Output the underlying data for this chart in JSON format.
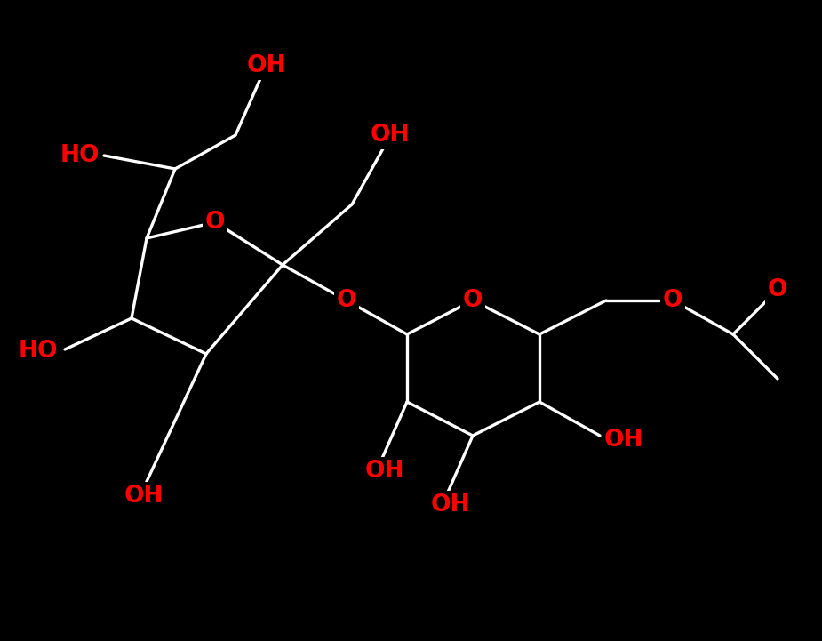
{
  "bg": "#000000",
  "white": "#ffffff",
  "red": "#ff0000",
  "figsize": [
    9.25,
    7.21
  ],
  "dpi": 100,
  "xlim": [
    0,
    925
  ],
  "ylim": [
    721,
    0
  ],
  "lw": 2.4,
  "fs": 19
}
